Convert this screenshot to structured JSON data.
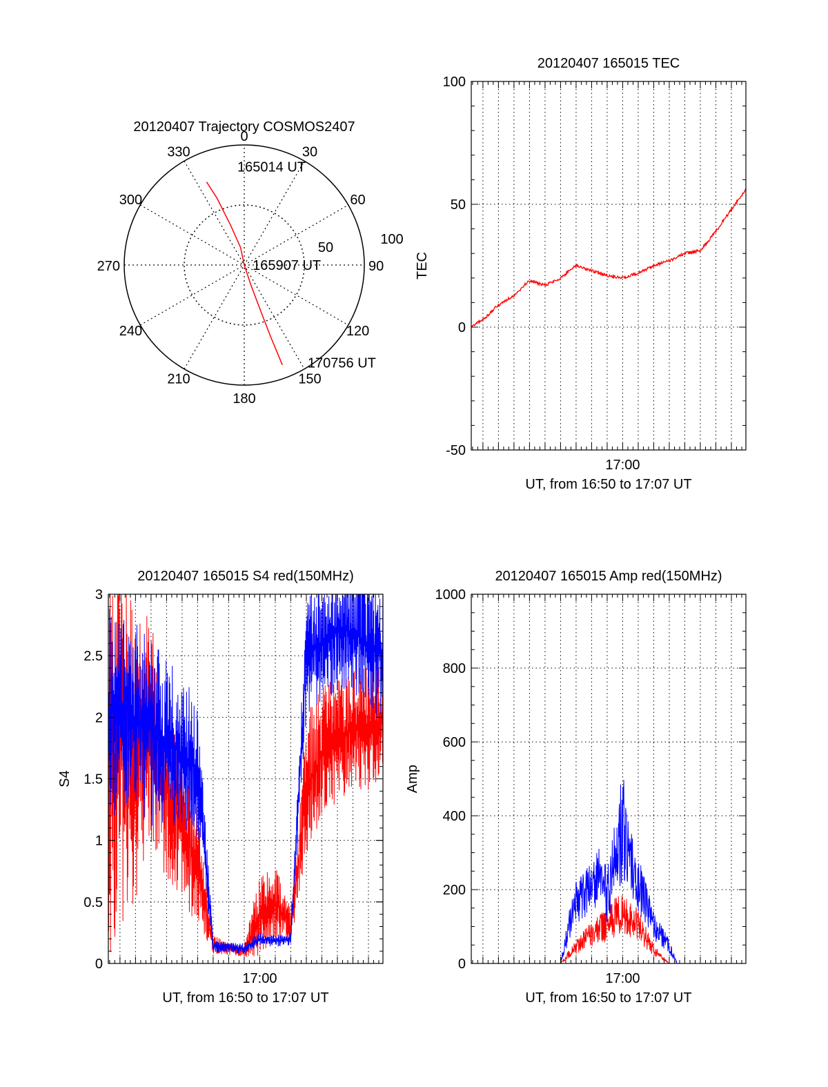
{
  "colors": {
    "red_channel": "#ff0000",
    "blue_channel": "#0000ff",
    "axes": "#000000",
    "grid": "#000000"
  },
  "chart_data": [
    {
      "id": "trajectory",
      "type": "polar",
      "title": "20120407 Trajectory COSMOS2407",
      "azimuth_labels": [
        "0",
        "30",
        "60",
        "90",
        "120",
        "150",
        "180",
        "210",
        "240",
        "270",
        "300",
        "330"
      ],
      "radius_labels": [
        "50",
        "100"
      ],
      "r_max": 100,
      "grid": "dotted",
      "series": [
        {
          "color": "red",
          "points": [
            {
              "az": 335.6,
              "r": 76
            },
            {
              "az": 337.8,
              "r": 60
            },
            {
              "az": 341.0,
              "r": 35
            },
            {
              "az": 348.0,
              "r": 15
            },
            {
              "az": 0.0,
              "r": 0
            },
            {
              "az": 161.6,
              "r": 18
            },
            {
              "az": 160.2,
              "r": 44
            },
            {
              "az": 159.8,
              "r": 64
            },
            {
              "az": 159.1,
              "r": 89
            }
          ]
        }
      ],
      "annotations": [
        {
          "text": "165014 UT",
          "az": 356,
          "r": 82
        },
        {
          "text": "165907 UT",
          "az": 90,
          "r": 7
        },
        {
          "text": "170756 UT",
          "az": 147,
          "r": 97
        }
      ]
    },
    {
      "id": "tec",
      "type": "line",
      "title": "20120407 165015 TEC",
      "ylabel": "TEC",
      "xlabel": "UT, from 16:50 to 17:07 UT",
      "x_range": [
        "16:50:15",
        "17:07:56"
      ],
      "x_ticks": [
        {
          "time": "17:00",
          "label": "17:00"
        }
      ],
      "ylim": [
        -50,
        100
      ],
      "y_ticks": [
        -50,
        0,
        50,
        100
      ],
      "grid": "dotted, vertical every minute",
      "series": [
        {
          "color": "red",
          "x": [
            "16:50:15",
            "16:51:00",
            "16:52:00",
            "16:53:00",
            "16:54:00",
            "16:55:00",
            "16:56:00",
            "16:57:00",
            "16:58:00",
            "16:59:00",
            "17:00:00",
            "17:01:00",
            "17:02:00",
            "17:03:00",
            "17:04:00",
            "17:05:00",
            "17:06:00",
            "17:07:00",
            "17:07:56"
          ],
          "y": [
            0,
            3,
            9,
            13,
            19,
            17,
            20,
            25,
            23,
            21,
            20,
            22,
            25,
            27,
            30,
            31,
            39,
            48,
            56
          ]
        }
      ]
    },
    {
      "id": "s4",
      "type": "line",
      "title": "20120407 165015 S4 red(150MHz)",
      "ylabel": "S4",
      "xlabel": "UT, from 16:50 to 17:07 UT",
      "x_range": [
        "16:50:15",
        "17:07:56"
      ],
      "x_ticks": [
        {
          "time": "17:00",
          "label": "17:00"
        }
      ],
      "ylim": [
        0,
        3
      ],
      "y_ticks": [
        "0",
        "0.5",
        "1",
        "1.5",
        "2",
        "2.5",
        "3"
      ],
      "grid": "dotted, vertical every minute",
      "series": [
        {
          "color": "red",
          "x": [
            "16:50:15",
            "16:51:00",
            "16:52:00",
            "16:53:00",
            "16:54:00",
            "16:55:00",
            "16:56:00",
            "16:57:00",
            "16:58:00",
            "16:59:00",
            "17:00:00",
            "17:01:00",
            "17:02:00",
            "17:03:00",
            "17:04:00",
            "17:05:00",
            "17:06:00",
            "17:07:00",
            "17:07:56"
          ],
          "y": [
            1.5,
            1.8,
            1.7,
            1.9,
            1.4,
            1.1,
            0.8,
            0.15,
            0.12,
            0.1,
            0.4,
            0.5,
            0.3,
            1.4,
            1.7,
            1.8,
            1.9,
            1.9,
            2.0
          ],
          "spread": [
            1.5,
            1.5,
            1.2,
            1.0,
            0.7,
            0.6,
            0.5,
            0.08,
            0.05,
            0.05,
            0.35,
            0.3,
            0.15,
            0.6,
            0.6,
            0.5,
            0.5,
            0.5,
            0.5
          ]
        },
        {
          "color": "blue",
          "x": [
            "16:50:15",
            "16:51:00",
            "16:52:00",
            "16:53:00",
            "16:54:00",
            "16:55:00",
            "16:56:00",
            "16:57:00",
            "16:58:00",
            "16:59:00",
            "17:00:00",
            "17:01:00",
            "17:02:00",
            "17:03:00",
            "17:04:00",
            "17:05:00",
            "17:06:00",
            "17:07:00",
            "17:07:56"
          ],
          "y": [
            2.0,
            2.1,
            2.0,
            1.9,
            1.8,
            1.7,
            1.6,
            0.14,
            0.13,
            0.12,
            0.2,
            0.18,
            0.2,
            2.5,
            2.6,
            2.7,
            2.7,
            2.6,
            2.5
          ],
          "spread": [
            0.9,
            0.9,
            0.8,
            0.8,
            0.7,
            0.6,
            0.6,
            0.05,
            0.04,
            0.05,
            0.05,
            0.05,
            0.05,
            0.5,
            0.5,
            0.5,
            0.5,
            0.5,
            0.6
          ]
        }
      ]
    },
    {
      "id": "amp",
      "type": "line",
      "title": "20120407 165015 Amp red(150MHz)",
      "ylabel": "Amp",
      "xlabel": "UT, from 16:50 to 17:07 UT",
      "x_range": [
        "16:50:15",
        "17:07:56"
      ],
      "x_ticks": [
        {
          "time": "17:00",
          "label": "17:00"
        }
      ],
      "ylim": [
        0,
        1000
      ],
      "y_ticks": [
        0,
        200,
        400,
        600,
        800,
        1000
      ],
      "grid": "dotted, vertical every minute",
      "series": [
        {
          "color": "red",
          "x": [
            "16:50:15",
            "16:55:00",
            "16:56:00",
            "16:57:00",
            "16:58:00",
            "16:59:00",
            "16:59:30",
            "17:00:00",
            "17:01:00",
            "17:02:00",
            "17:03:00",
            "17:07:56"
          ],
          "y": [
            0,
            0,
            0,
            40,
            70,
            90,
            110,
            120,
            90,
            30,
            0,
            0
          ],
          "spread": [
            0,
            0,
            0,
            20,
            35,
            45,
            55,
            55,
            45,
            15,
            0,
            0
          ]
        },
        {
          "color": "blue",
          "x": [
            "16:50:15",
            "16:56:00",
            "16:56:30",
            "16:57:00",
            "16:58:00",
            "16:58:30",
            "16:59:00",
            "16:59:30",
            "17:00:00",
            "17:00:30",
            "17:01:00",
            "17:02:00",
            "17:03:00",
            "17:03:30",
            "17:07:56"
          ],
          "y": [
            0,
            0,
            80,
            150,
            180,
            220,
            160,
            250,
            330,
            260,
            190,
            90,
            40,
            0,
            0
          ],
          "spread": [
            0,
            0,
            40,
            60,
            70,
            80,
            70,
            110,
            150,
            100,
            80,
            40,
            20,
            0,
            0
          ]
        }
      ]
    }
  ]
}
